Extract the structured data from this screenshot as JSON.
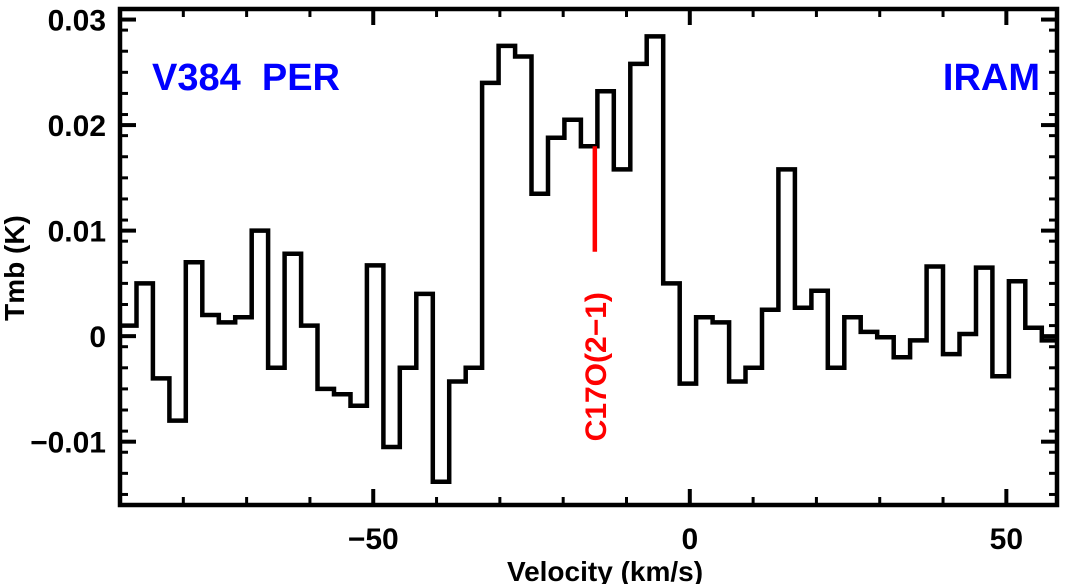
{
  "chart_data": {
    "type": "line",
    "style": "step",
    "xlabel": "Velocity (km/s)",
    "ylabel": "Tmb (K)",
    "xlim": [
      -90,
      58
    ],
    "ylim": [
      -0.016,
      0.031
    ],
    "x_ticks": [
      -50,
      0,
      50
    ],
    "x_tick_labels": [
      "−50",
      "0",
      "50"
    ],
    "y_ticks": [
      -0.01,
      0,
      0.01,
      0.02,
      0.03
    ],
    "y_tick_labels": [
      "−0.01",
      "0",
      "0.01",
      "0.02",
      "0.03"
    ],
    "grid": false,
    "series": [
      {
        "name": "spectrum",
        "color": "#000000",
        "bin_width_kms": 2.6,
        "start_velocity_kms": -90,
        "values": [
          0.001,
          0.005,
          -0.004,
          -0.008,
          0.007,
          0.002,
          0.0013,
          0.0018,
          0.01,
          -0.003,
          0.0078,
          0.001,
          -0.005,
          -0.0055,
          -0.0066,
          0.0067,
          -0.0105,
          -0.003,
          0.004,
          -0.0138,
          -0.0043,
          -0.003,
          0.024,
          0.0275,
          0.0265,
          0.0135,
          0.0188,
          0.0205,
          0.018,
          0.0232,
          0.0158,
          0.0258,
          0.0284,
          0.005,
          -0.0045,
          0.0018,
          0.0013,
          -0.0043,
          -0.003,
          0.0025,
          0.0158,
          0.0027,
          0.0043,
          -0.003,
          0.0018,
          0.0004,
          -0.0001,
          -0.002,
          -0.0004,
          0.0066,
          -0.0017,
          0.0002,
          0.0065,
          -0.0038,
          0.0052,
          0.0008,
          -0.0004
        ]
      }
    ],
    "annotations": [
      {
        "text": "V384  PER",
        "color": "#0000ff",
        "position": "top-left"
      },
      {
        "text": "IRAM",
        "color": "#0000ff",
        "position": "top-right"
      },
      {
        "text": "C17O(2−1)",
        "color": "#ff0000",
        "marker_velocity": -15,
        "marker_y_range": [
          0.008,
          0.018
        ],
        "orientation": "vertical"
      }
    ]
  }
}
